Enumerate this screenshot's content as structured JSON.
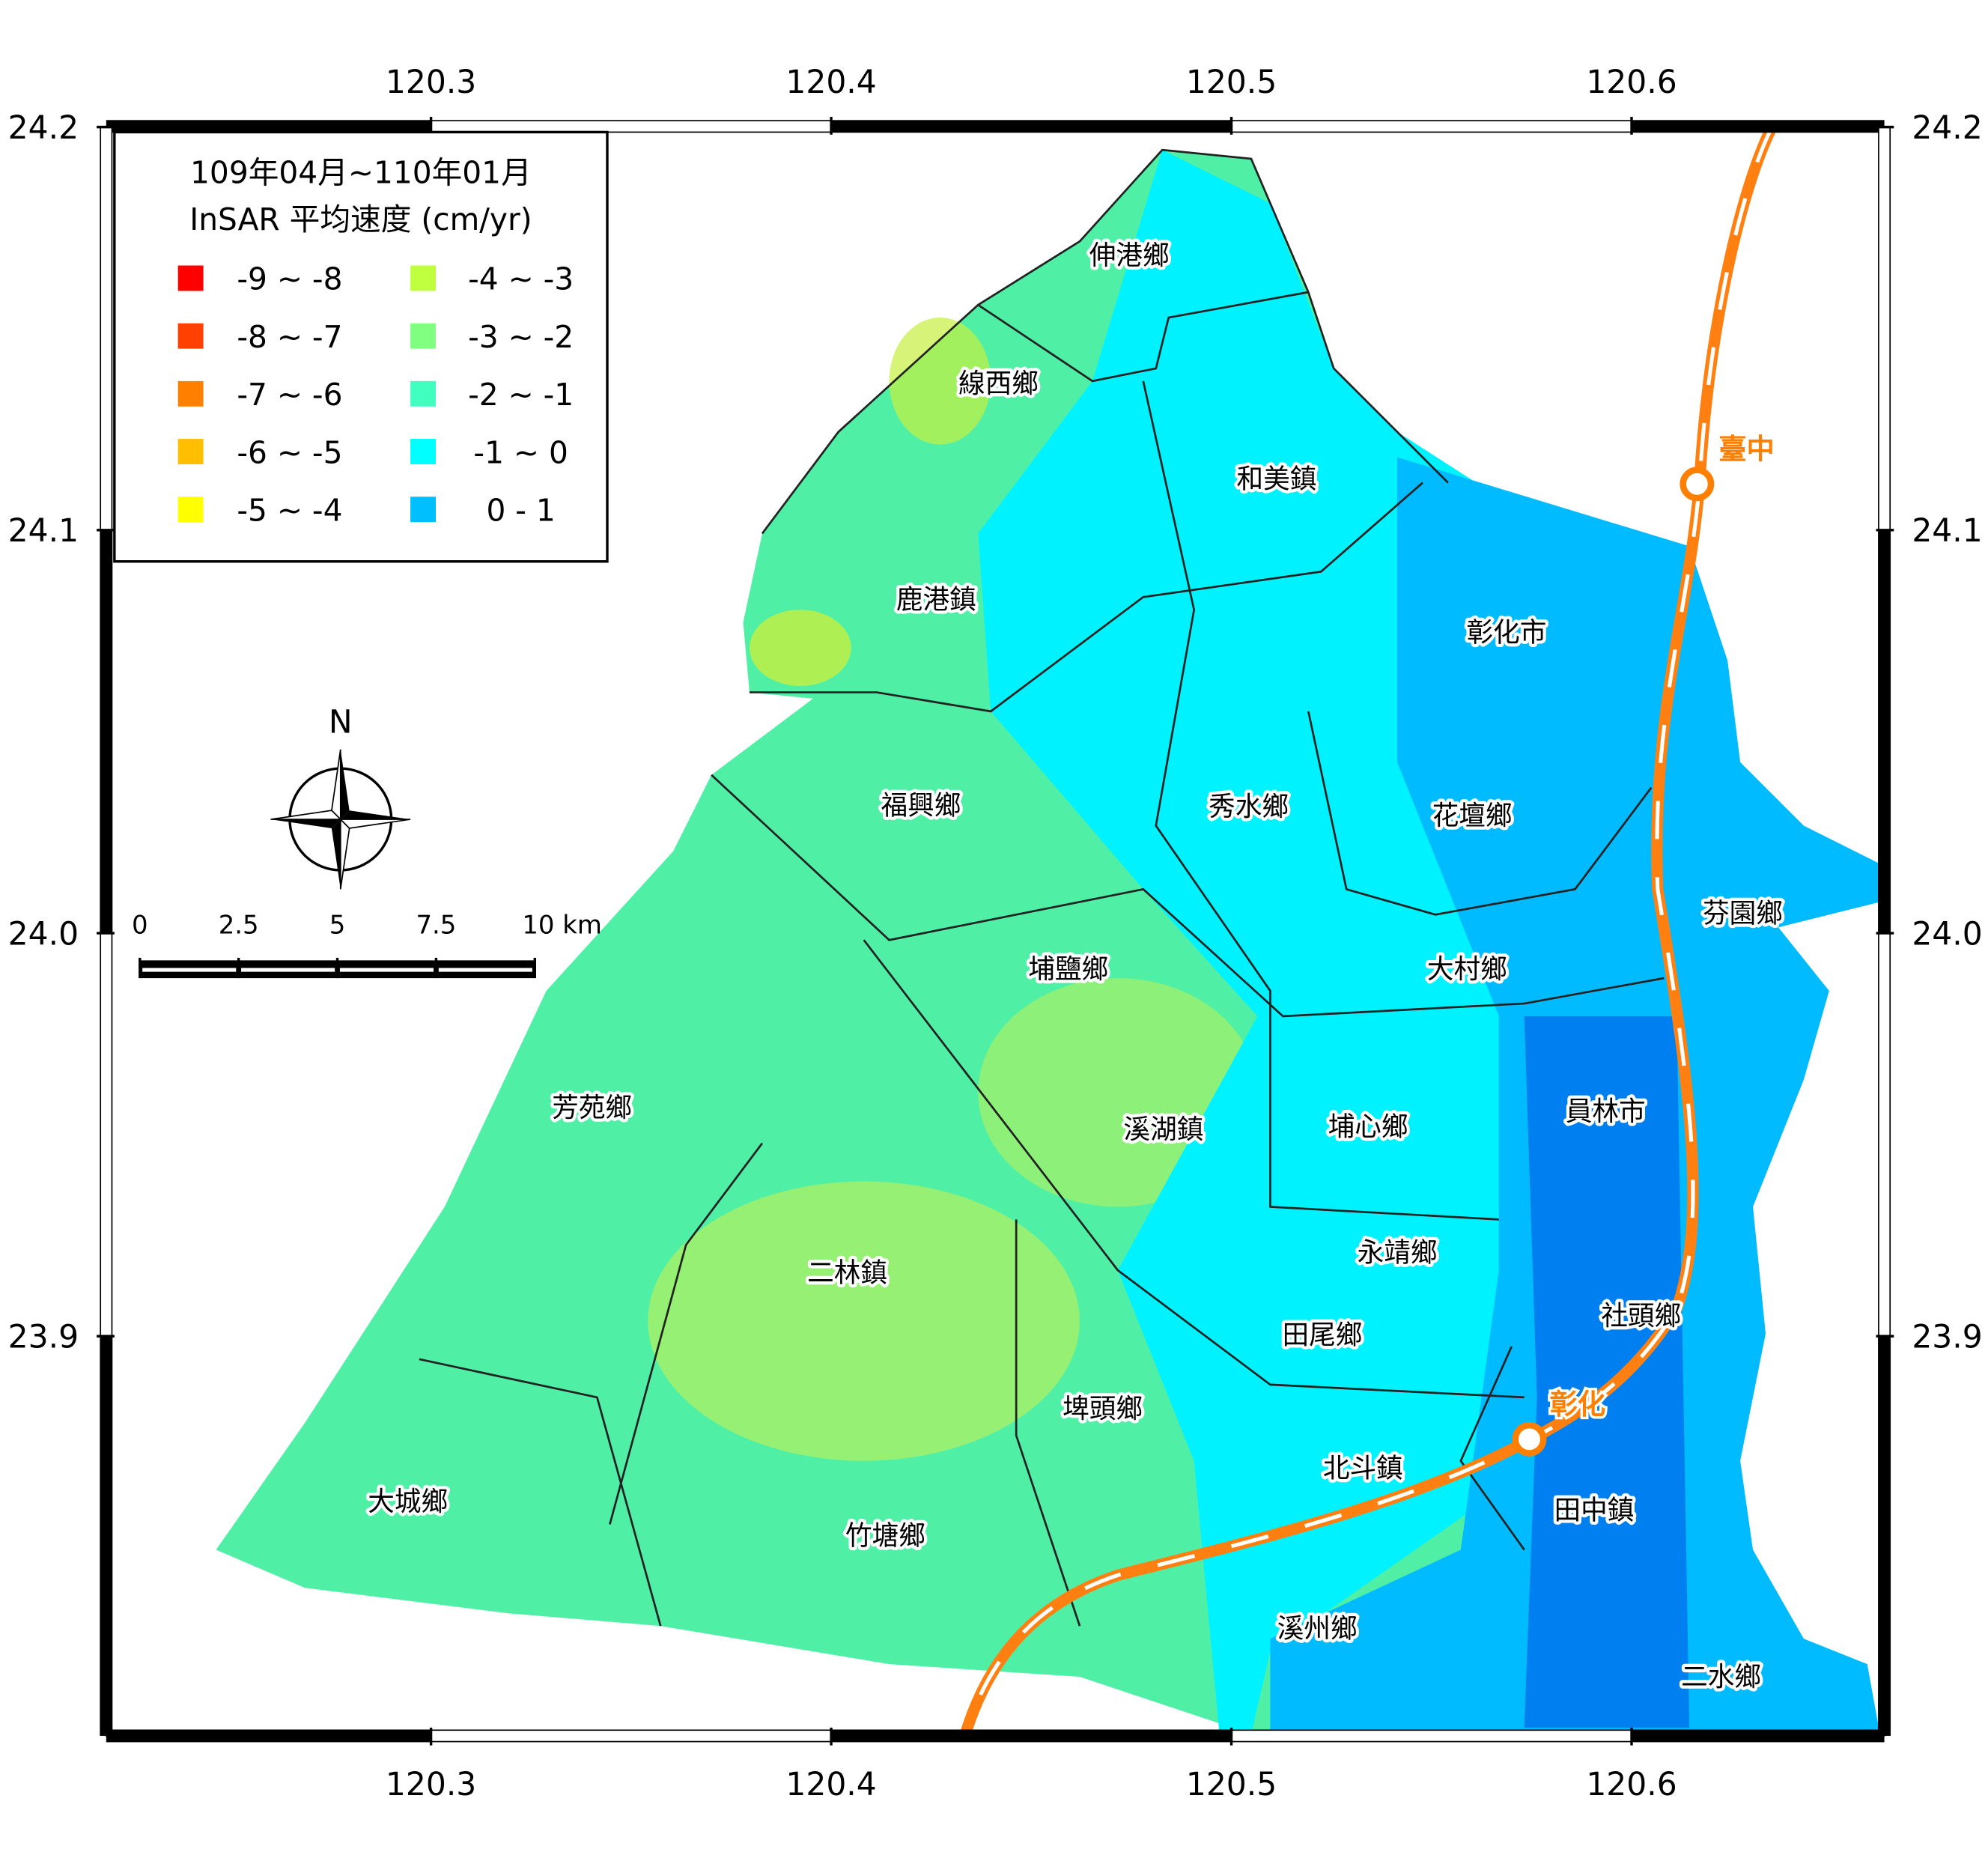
{
  "legend": {
    "title": [
      "109年04月~110年01月",
      "InSAR 平均速度 (cm/yr)"
    ],
    "items": [
      {
        "label": "-9 ~ -8",
        "color": "#ff0000"
      },
      {
        "label": "-8 ~ -7",
        "color": "#ff4000"
      },
      {
        "label": "-7 ~ -6",
        "color": "#ff8000"
      },
      {
        "label": "-6 ~ -5",
        "color": "#ffbf00"
      },
      {
        "label": "-5 ~ -4",
        "color": "#ffff00"
      },
      {
        "label": "-4 ~ -3",
        "color": "#bfff40"
      },
      {
        "label": "-3 ~ -2",
        "color": "#80ff80"
      },
      {
        "label": "-2 ~ -1",
        "color": "#40ffbf"
      },
      {
        "label": "-1 ~ 0",
        "color": "#00ffff"
      },
      {
        "label": "0 - 1",
        "color": "#00bfff"
      }
    ]
  },
  "axes": {
    "xlim": [
      120.219,
      120.663
    ],
    "ylim": [
      23.801,
      24.2
    ],
    "xticks": [
      120.3,
      120.4,
      120.5,
      120.6
    ],
    "yticks": [
      24.2,
      24.1,
      {
        "value": 24.0,
        "label": "24.0"
      },
      23.9
    ]
  },
  "north": "N",
  "scale_bar": {
    "ticks": [
      0,
      2.5,
      5,
      7.5,
      {
        "value": 10,
        "label": "10 km"
      }
    ]
  },
  "towns": [
    "伸港鄉",
    "線西鄉",
    "和美鎮",
    "鹿港鎮",
    "彰化市",
    "福興鄉",
    "秀水鄉",
    "花壇鄉",
    "芬園鄉",
    "埔鹽鄉",
    "大村鄉",
    "芳苑鄉",
    "溪湖鎮",
    "埔心鄉",
    "員林市",
    "永靖鄉",
    "二林鎮",
    "田尾鄉",
    "社頭鄉",
    "埤頭鄉",
    "北斗鎮",
    "大城鄉",
    "竹塘鄉",
    "田中鎮",
    "溪州鄉",
    "二水鄉"
  ],
  "stations": [
    "臺中",
    "彰化"
  ]
}
